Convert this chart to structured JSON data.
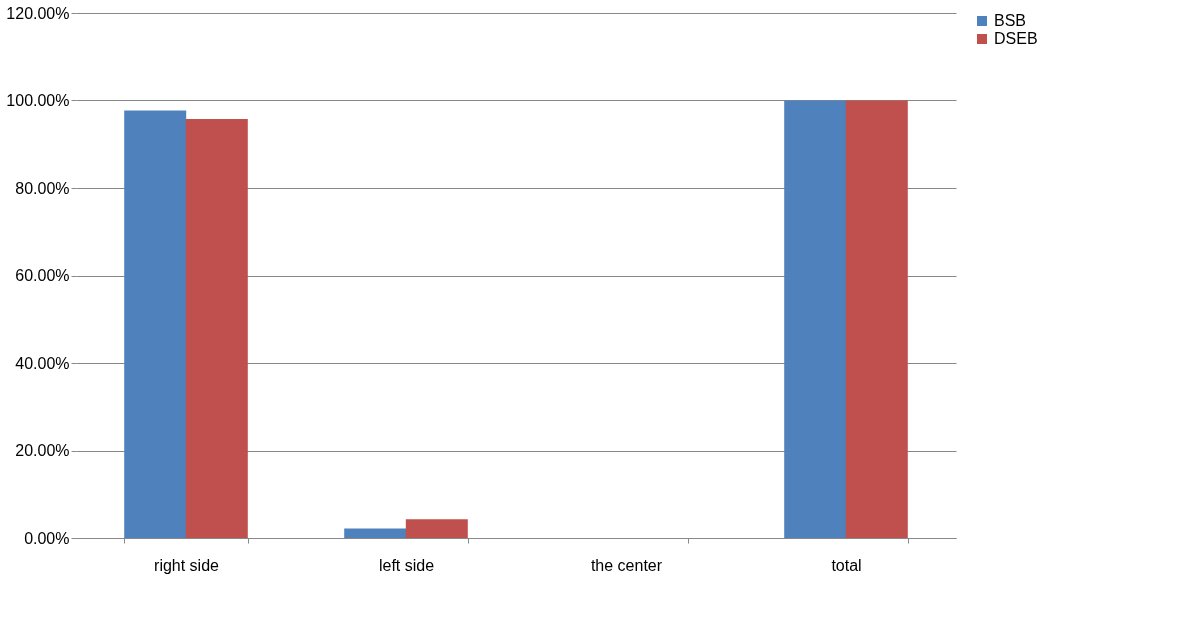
{
  "chart_data": {
    "type": "bar",
    "categories": [
      "right side",
      "left side",
      "the center",
      "total"
    ],
    "series": [
      {
        "name": "BSB",
        "color": "#4f81bd",
        "values": [
          97.7,
          2.2,
          0,
          100
        ]
      },
      {
        "name": "DSEB",
        "color": "#c0504d",
        "values": [
          95.8,
          4.3,
          0,
          100
        ]
      }
    ],
    "ylim": [
      0,
      120
    ],
    "yticks": [
      {
        "value": 0,
        "label": "0.00%"
      },
      {
        "value": 20,
        "label": "20.00%"
      },
      {
        "value": 40,
        "label": "40.00%"
      },
      {
        "value": 60,
        "label": "60.00%"
      },
      {
        "value": 80,
        "label": "80.00%"
      },
      {
        "value": 100,
        "label": "100.00%"
      },
      {
        "value": 120,
        "label": "120.00%"
      }
    ],
    "grid": "y",
    "legend": "right"
  }
}
